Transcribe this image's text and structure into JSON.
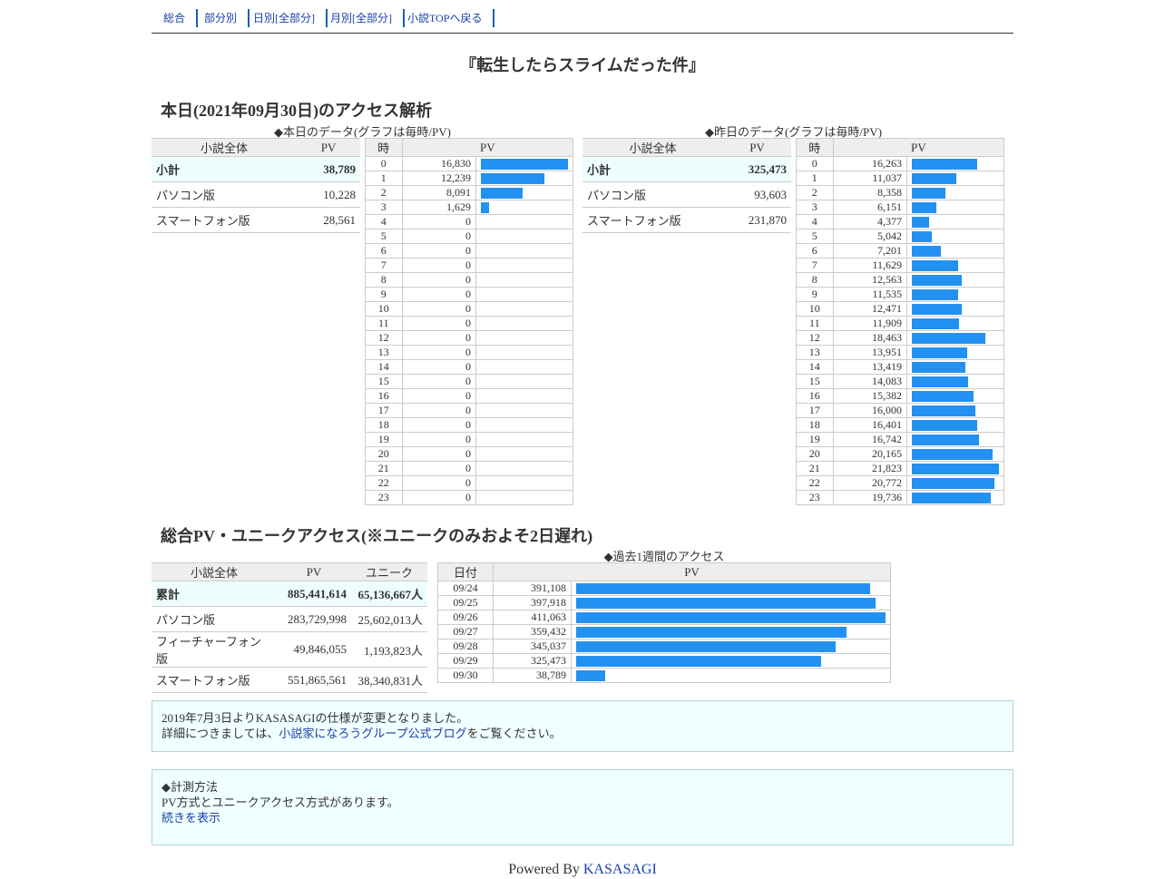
{
  "nav": [
    "総合",
    "部分別",
    "日別[全部分]",
    "月別[全部分]",
    "小説TOPへ戻る"
  ],
  "novel_title": "『転生したらスライムだった件』",
  "today_heading": "本日(2021年09月30日)のアクセス解析",
  "today_caption": "◆本日のデータ(グラフは毎時/PV)",
  "yesterday_caption": "◆昨日のデータ(グラフは毎時/PV)",
  "summary_headers": {
    "novel": "小説全体",
    "pv": "PV",
    "unique": "ユニーク"
  },
  "hour_headers": {
    "hour": "時",
    "pv": "PV"
  },
  "today_summary": [
    {
      "label": "小計",
      "pv": "38,789"
    },
    {
      "label": "パソコン版",
      "pv": "10,228"
    },
    {
      "label": "スマートフォン版",
      "pv": "28,561"
    }
  ],
  "yesterday_summary": [
    {
      "label": "小計",
      "pv": "325,473"
    },
    {
      "label": "パソコン版",
      "pv": "93,603"
    },
    {
      "label": "スマートフォン版",
      "pv": "231,870"
    }
  ],
  "today_hourly": [
    16830,
    12239,
    8091,
    1629,
    0,
    0,
    0,
    0,
    0,
    0,
    0,
    0,
    0,
    0,
    0,
    0,
    0,
    0,
    0,
    0,
    0,
    0,
    0,
    0
  ],
  "yesterday_hourly": [
    16263,
    11037,
    8358,
    6151,
    4377,
    5042,
    7201,
    11629,
    12563,
    11535,
    12471,
    11909,
    18463,
    13951,
    13419,
    14083,
    15382,
    16000,
    16401,
    16742,
    20165,
    21823,
    20772,
    19736
  ],
  "total_heading": "総合PV・ユニークアクセス(※ユニークのみおよそ2日遅れ)",
  "week_caption": "◆過去1週間のアクセス",
  "total_summary": [
    {
      "label": "累計",
      "pv": "885,441,614",
      "unique": "65,136,667人"
    },
    {
      "label": "パソコン版",
      "pv": "283,729,998",
      "unique": "25,602,013人"
    },
    {
      "label": "フィーチャーフォン版",
      "pv": "49,846,055",
      "unique": "1,193,823人"
    },
    {
      "label": "スマートフォン版",
      "pv": "551,865,561",
      "unique": "38,340,831人"
    }
  ],
  "week_headers": {
    "date": "日付",
    "pv": "PV"
  },
  "weekly": [
    {
      "date": "09/24",
      "pv": 391108
    },
    {
      "date": "09/25",
      "pv": 397918
    },
    {
      "date": "09/26",
      "pv": 411063
    },
    {
      "date": "09/27",
      "pv": 359432
    },
    {
      "date": "09/28",
      "pv": 345037
    },
    {
      "date": "09/29",
      "pv": 325473
    },
    {
      "date": "09/30",
      "pv": 38789
    }
  ],
  "notice1": {
    "line1": "2019年7月3日よりKASASAGIの仕様が変更となりました。",
    "line2_prefix": "詳細につきましては、",
    "link": "小説家になろうグループ公式ブログ",
    "line2_suffix": "をご覧ください。"
  },
  "notice2": {
    "title": "◆計測方法",
    "body": "PV方式とユニークアクセス方式があります。",
    "link": "続きを表示"
  },
  "footer": {
    "prefix": "Powered By ",
    "link": "KASASAGI"
  },
  "colors": {
    "bar": "#2391f1",
    "highlight_row": "#eefefe",
    "notice_bg": "#f0ffff",
    "link": "#1a3fa8"
  }
}
